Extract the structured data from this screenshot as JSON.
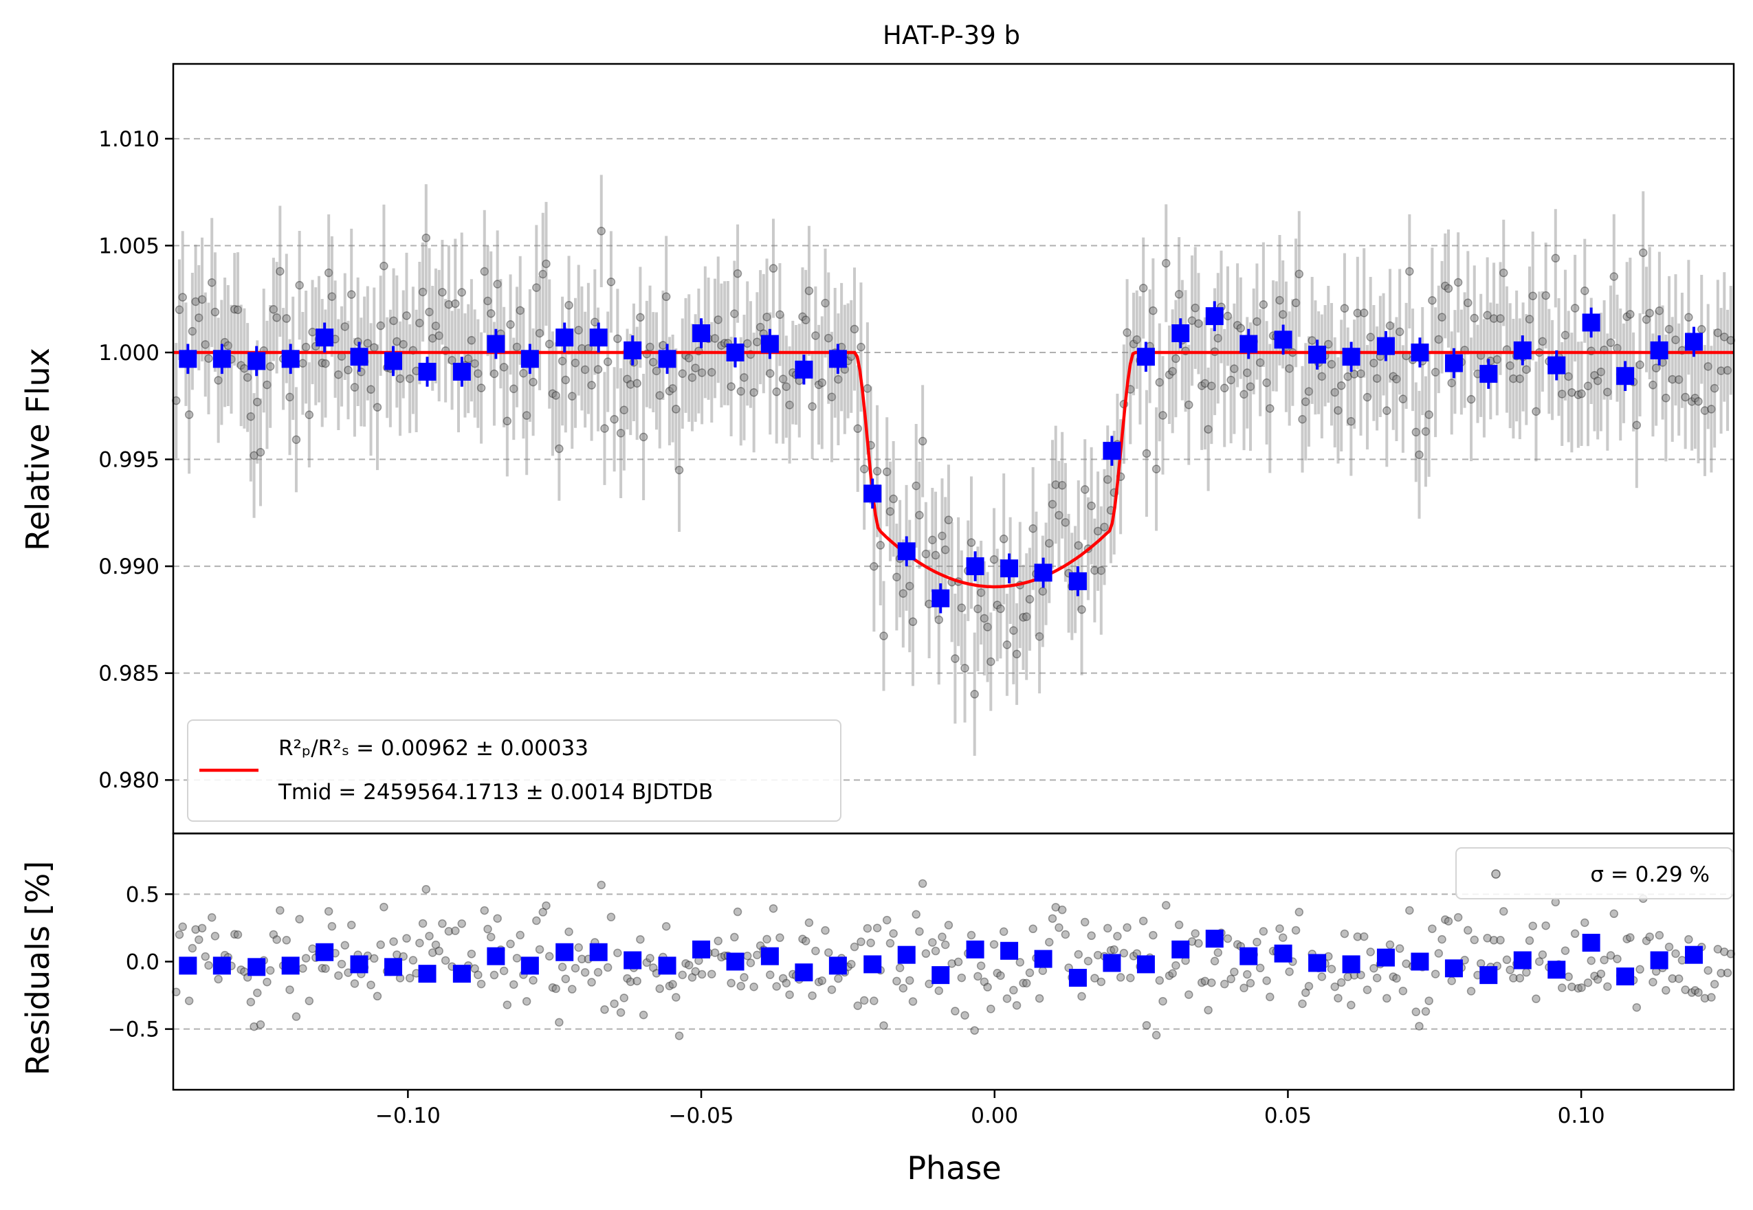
{
  "chart_data": [
    {
      "type": "scatter",
      "panel": "top",
      "title": "HAT-P-39 b",
      "xlabel": "",
      "ylabel": "Relative Flux",
      "xlim": [
        -0.14,
        0.126
      ],
      "ylim": [
        0.9775,
        1.0135
      ],
      "yticks": [
        0.98,
        0.985,
        0.99,
        0.995,
        1.0,
        1.005,
        1.01
      ],
      "ytick_labels": [
        "0.980",
        "0.985",
        "0.990",
        "0.995",
        "1.000",
        "1.005",
        "1.010"
      ],
      "grid": "horizontal dashed",
      "legend": {
        "placement": "bottom-left",
        "line_label_1": "R²ₚ/R²ₛ = 0.00962 ± 0.00033",
        "line_label_2": "Tmid = 2459564.1713 ± 0.0014 BJDTDB"
      },
      "model": {
        "name": "transit model",
        "color": "#ff0000",
        "baseline": 1.0,
        "depth_min": 0.98904,
        "t_ingress_start": -0.0238,
        "t_ingress_end": -0.0195,
        "t_egress_start": 0.0195,
        "t_egress_end": 0.0238
      },
      "raw_points": {
        "color": "#000000",
        "count": 480,
        "scatter_sigma": 0.0029,
        "typical_error": 0.0027,
        "x_range": [
          -0.1395,
          0.1255
        ]
      },
      "binned_series": {
        "name": "binned",
        "color": "#0000ff",
        "x": [
          -0.1375,
          -0.1317,
          -0.1258,
          -0.12,
          -0.1142,
          -0.1083,
          -0.1025,
          -0.0967,
          -0.0908,
          -0.085,
          -0.0792,
          -0.0733,
          -0.0675,
          -0.0617,
          -0.0558,
          -0.05,
          -0.0442,
          -0.0383,
          -0.0325,
          -0.0267,
          -0.0208,
          -0.015,
          -0.0092,
          -0.0033,
          0.0025,
          0.0083,
          0.0142,
          0.02,
          0.0258,
          0.0317,
          0.0375,
          0.0433,
          0.0492,
          0.055,
          0.0608,
          0.0667,
          0.0725,
          0.0783,
          0.0842,
          0.09,
          0.0958,
          0.1017,
          0.1075,
          0.1133,
          0.1192
        ],
        "y": [
          0.9997,
          0.9997,
          0.9996,
          0.9997,
          1.0007,
          0.9998,
          0.9996,
          0.9991,
          0.9991,
          1.0004,
          0.9997,
          1.0007,
          1.0007,
          1.0001,
          0.9997,
          1.0009,
          1.0,
          1.0004,
          0.9992,
          0.9997,
          0.9934,
          0.9907,
          0.9885,
          0.99,
          0.9899,
          0.9897,
          0.9893,
          0.9954,
          0.9998,
          1.0009,
          1.0017,
          1.0004,
          1.0006,
          0.9999,
          0.9998,
          1.0003,
          1.0,
          0.9995,
          0.999,
          1.0001,
          0.9994,
          1.0014,
          0.9989,
          1.0001,
          1.0005
        ],
        "yerr": [
          0.0007,
          0.0007,
          0.0007,
          0.0007,
          0.0007,
          0.0007,
          0.0007,
          0.0007,
          0.0007,
          0.0007,
          0.0007,
          0.0007,
          0.0007,
          0.0007,
          0.0007,
          0.0007,
          0.0007,
          0.0007,
          0.0007,
          0.0007,
          0.0007,
          0.0007,
          0.0007,
          0.0007,
          0.0007,
          0.0007,
          0.0007,
          0.0007,
          0.0007,
          0.0007,
          0.0007,
          0.0007,
          0.0007,
          0.0007,
          0.0007,
          0.0007,
          0.0007,
          0.0007,
          0.0007,
          0.0007,
          0.0007,
          0.0007,
          0.0007,
          0.0007,
          0.0007
        ]
      }
    },
    {
      "type": "scatter",
      "panel": "bottom",
      "title": "",
      "xlabel": "Phase",
      "ylabel": "Residuals [%]",
      "xlim": [
        -0.14,
        0.126
      ],
      "ylim": [
        -0.95,
        0.95
      ],
      "xticks": [
        -0.1,
        -0.05,
        0.0,
        0.05,
        0.1
      ],
      "xtick_labels": [
        "−0.10",
        "−0.05",
        "0.00",
        "0.05",
        "0.10"
      ],
      "yticks": [
        -0.5,
        0.0,
        0.5
      ],
      "ytick_labels": [
        "−0.5",
        "0.0",
        "0.5"
      ],
      "grid": "horizontal dashed",
      "legend": {
        "placement": "top-right",
        "label": "σ = 0.29 %"
      },
      "raw_points": {
        "color": "#000000",
        "count": 480,
        "scatter_sigma": 0.29
      },
      "binned_series": {
        "name": "binned residuals",
        "color": "#0000ff",
        "x": [
          -0.1375,
          -0.1317,
          -0.1258,
          -0.12,
          -0.1142,
          -0.1083,
          -0.1025,
          -0.0967,
          -0.0908,
          -0.085,
          -0.0792,
          -0.0733,
          -0.0675,
          -0.0617,
          -0.0558,
          -0.05,
          -0.0442,
          -0.0383,
          -0.0325,
          -0.0267,
          -0.0208,
          -0.015,
          -0.0092,
          -0.0033,
          0.0025,
          0.0083,
          0.0142,
          0.02,
          0.0258,
          0.0317,
          0.0375,
          0.0433,
          0.0492,
          0.055,
          0.0608,
          0.0667,
          0.0725,
          0.0783,
          0.0842,
          0.09,
          0.0958,
          0.1017,
          0.1075,
          0.1133,
          0.1192
        ],
        "y": [
          -0.03,
          -0.03,
          -0.04,
          -0.03,
          0.07,
          -0.02,
          -0.04,
          -0.09,
          -0.09,
          0.04,
          -0.03,
          0.07,
          0.07,
          0.01,
          -0.03,
          0.09,
          0.0,
          0.04,
          -0.08,
          -0.03,
          -0.02,
          0.05,
          -0.1,
          0.09,
          0.08,
          0.02,
          -0.12,
          -0.01,
          -0.02,
          0.09,
          0.17,
          0.04,
          0.06,
          -0.01,
          -0.02,
          0.03,
          0.0,
          -0.05,
          -0.1,
          0.01,
          -0.06,
          0.14,
          -0.11,
          0.01,
          0.05
        ]
      }
    }
  ]
}
